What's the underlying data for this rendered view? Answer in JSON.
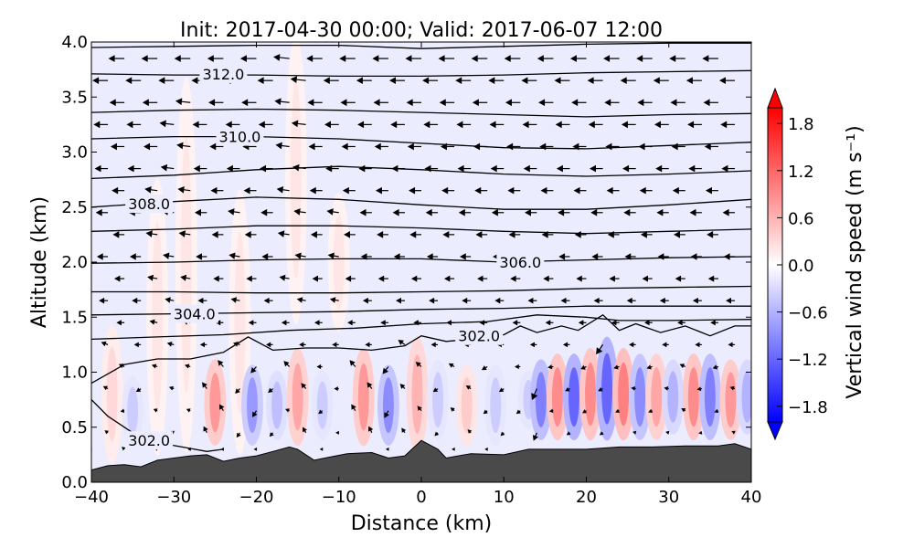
{
  "chart_data": {
    "type": "heatmap",
    "title": "Init: 2017-04-30 00:00; Valid: 2017-06-07 12:00",
    "xlabel": "Distance (km)",
    "ylabel": "Altitude (km)",
    "xlim": [
      -40,
      40
    ],
    "ylim": [
      0.0,
      4.0
    ],
    "x_ticks": [
      -40,
      -30,
      -20,
      -10,
      0,
      10,
      20,
      30,
      40
    ],
    "x_tick_labels": [
      "−40",
      "−30",
      "−20",
      "−10",
      "0",
      "10",
      "20",
      "30",
      "40"
    ],
    "y_ticks": [
      0.0,
      0.5,
      1.0,
      1.5,
      2.0,
      2.5,
      3.0,
      3.5,
      4.0
    ],
    "y_tick_labels": [
      "0.0",
      "0.5",
      "1.0",
      "1.5",
      "2.0",
      "2.5",
      "3.0",
      "3.5",
      "4.0"
    ],
    "colorbar": {
      "label": "Vertical wind speed (m s⁻¹)",
      "range": [
        -2.0,
        2.0
      ],
      "ticks": [
        1.8,
        1.2,
        0.6,
        0.0,
        -0.6,
        -1.2,
        -1.8
      ],
      "tick_labels": [
        "1.8",
        "1.2",
        "0.6",
        "0.0",
        "−0.6",
        "−1.2",
        "−1.8"
      ],
      "colormap": "bwr",
      "extend": "both"
    },
    "grid": false,
    "colors": {
      "terrain": "#4a4a4a",
      "max": "#ff0000",
      "min": "#0000ff",
      "mid": "#ffffff"
    },
    "terrain_height_km": [
      [
        -40,
        0.11
      ],
      [
        -38,
        0.15
      ],
      [
        -36,
        0.16
      ],
      [
        -34,
        0.14
      ],
      [
        -32,
        0.2
      ],
      [
        -30,
        0.22
      ],
      [
        -28,
        0.24
      ],
      [
        -26,
        0.25
      ],
      [
        -24,
        0.19
      ],
      [
        -22,
        0.22
      ],
      [
        -20,
        0.24
      ],
      [
        -18,
        0.28
      ],
      [
        -16,
        0.32
      ],
      [
        -15,
        0.3
      ],
      [
        -13,
        0.2
      ],
      [
        -11,
        0.23
      ],
      [
        -9,
        0.26
      ],
      [
        -6,
        0.27
      ],
      [
        -4,
        0.22
      ],
      [
        -2,
        0.24
      ],
      [
        0,
        0.38
      ],
      [
        2,
        0.3
      ],
      [
        3,
        0.22
      ],
      [
        6,
        0.26
      ],
      [
        10,
        0.25
      ],
      [
        13,
        0.3
      ],
      [
        16,
        0.3
      ],
      [
        20,
        0.3
      ],
      [
        24,
        0.32
      ],
      [
        28,
        0.32
      ],
      [
        32,
        0.33
      ],
      [
        36,
        0.33
      ],
      [
        38,
        0.35
      ],
      [
        40,
        0.3
      ]
    ],
    "theta_contours": [
      {
        "level": "302.0",
        "label_at": [
          -33,
          0.38
        ],
        "points": [
          [
            -40,
            0.75
          ],
          [
            -38,
            0.6
          ],
          [
            -35,
            0.45
          ],
          [
            -32,
            0.36
          ],
          [
            -29,
            0.32
          ],
          [
            -26,
            0.28
          ],
          [
            -24,
            0.3
          ]
        ]
      },
      {
        "level": "302.0",
        "label_at": [
          7,
          1.33
        ],
        "points": [
          [
            -40,
            0.9
          ],
          [
            -36,
            1.07
          ],
          [
            -32,
            1.12
          ],
          [
            -28,
            1.12
          ],
          [
            -24,
            1.18
          ],
          [
            -21,
            1.32
          ],
          [
            -18,
            1.2
          ],
          [
            -14,
            1.22
          ],
          [
            -10,
            1.22
          ],
          [
            -6,
            1.2
          ],
          [
            -2,
            1.24
          ],
          [
            0,
            1.33
          ],
          [
            3,
            1.28
          ],
          [
            6,
            1.3
          ],
          [
            10,
            1.34
          ],
          [
            12,
            1.42
          ],
          [
            14,
            1.36
          ],
          [
            17,
            1.42
          ],
          [
            19,
            1.38
          ],
          [
            22,
            1.52
          ],
          [
            24,
            1.38
          ],
          [
            26,
            1.44
          ],
          [
            29,
            1.36
          ],
          [
            32,
            1.42
          ],
          [
            35,
            1.33
          ],
          [
            38,
            1.42
          ],
          [
            40,
            1.42
          ]
        ]
      },
      {
        "level": "",
        "points": [
          [
            -40,
            1.3
          ],
          [
            -32,
            1.32
          ],
          [
            -24,
            1.34
          ],
          [
            -16,
            1.38
          ],
          [
            -8,
            1.4
          ],
          [
            0,
            1.44
          ],
          [
            8,
            1.46
          ],
          [
            14,
            1.52
          ],
          [
            20,
            1.5
          ],
          [
            24,
            1.47
          ],
          [
            30,
            1.47
          ],
          [
            40,
            1.48
          ]
        ]
      },
      {
        "level": "304.0",
        "label_at": [
          -27.5,
          1.53
        ],
        "points": [
          [
            -40,
            1.52
          ],
          [
            -30,
            1.53
          ],
          [
            -20,
            1.54
          ],
          [
            -10,
            1.55
          ],
          [
            0,
            1.57
          ],
          [
            10,
            1.58
          ],
          [
            20,
            1.6
          ],
          [
            30,
            1.6
          ],
          [
            40,
            1.6
          ]
        ]
      },
      {
        "level": "",
        "points": [
          [
            -40,
            1.73
          ],
          [
            -30,
            1.73
          ],
          [
            -20,
            1.72
          ],
          [
            -10,
            1.72
          ],
          [
            0,
            1.73
          ],
          [
            10,
            1.74
          ],
          [
            20,
            1.76
          ],
          [
            30,
            1.77
          ],
          [
            40,
            1.78
          ]
        ]
      },
      {
        "level": "306.0",
        "label_at": [
          12,
          2.0
        ],
        "points": [
          [
            -40,
            1.99
          ],
          [
            -30,
            2.0
          ],
          [
            -20,
            2.02
          ],
          [
            -10,
            2.03
          ],
          [
            0,
            2.03
          ],
          [
            10,
            2.0
          ],
          [
            20,
            2.02
          ],
          [
            30,
            2.04
          ],
          [
            40,
            2.05
          ]
        ]
      },
      {
        "level": "",
        "points": [
          [
            -40,
            2.28
          ],
          [
            -30,
            2.3
          ],
          [
            -20,
            2.33
          ],
          [
            -10,
            2.33
          ],
          [
            0,
            2.31
          ],
          [
            10,
            2.28
          ],
          [
            20,
            2.26
          ],
          [
            30,
            2.28
          ],
          [
            40,
            2.3
          ]
        ]
      },
      {
        "level": "308.0",
        "label_at": [
          -33,
          2.53
        ],
        "points": [
          [
            -40,
            2.5
          ],
          [
            -30,
            2.55
          ],
          [
            -20,
            2.59
          ],
          [
            -10,
            2.57
          ],
          [
            0,
            2.52
          ],
          [
            10,
            2.48
          ],
          [
            20,
            2.48
          ],
          [
            30,
            2.52
          ],
          [
            40,
            2.57
          ]
        ]
      },
      {
        "level": "",
        "points": [
          [
            -40,
            2.76
          ],
          [
            -30,
            2.79
          ],
          [
            -20,
            2.84
          ],
          [
            -10,
            2.87
          ],
          [
            0,
            2.84
          ],
          [
            10,
            2.8
          ],
          [
            20,
            2.78
          ],
          [
            30,
            2.8
          ],
          [
            40,
            2.83
          ]
        ]
      },
      {
        "level": "310.0",
        "label_at": [
          -22,
          3.14
        ],
        "points": [
          [
            -40,
            3.12
          ],
          [
            -30,
            3.14
          ],
          [
            -20,
            3.14
          ],
          [
            -10,
            3.12
          ],
          [
            0,
            3.08
          ],
          [
            10,
            3.04
          ],
          [
            20,
            3.03
          ],
          [
            30,
            3.06
          ],
          [
            40,
            3.09
          ]
        ]
      },
      {
        "level": "",
        "points": [
          [
            -40,
            3.36
          ],
          [
            -30,
            3.38
          ],
          [
            -20,
            3.39
          ],
          [
            -10,
            3.38
          ],
          [
            0,
            3.36
          ],
          [
            10,
            3.34
          ],
          [
            20,
            3.32
          ],
          [
            30,
            3.34
          ],
          [
            40,
            3.35
          ]
        ]
      },
      {
        "level": "312.0",
        "label_at": [
          -24,
          3.71
        ],
        "points": [
          [
            -40,
            3.71
          ],
          [
            -30,
            3.7
          ],
          [
            -20,
            3.7
          ],
          [
            -10,
            3.69
          ],
          [
            0,
            3.69
          ],
          [
            10,
            3.7
          ],
          [
            20,
            3.72
          ],
          [
            30,
            3.73
          ],
          [
            40,
            3.74
          ]
        ]
      },
      {
        "level": "",
        "points": [
          [
            -40,
            3.95
          ],
          [
            -30,
            3.96
          ],
          [
            -20,
            3.97
          ],
          [
            -10,
            3.97
          ],
          [
            0,
            3.94
          ],
          [
            10,
            3.96
          ],
          [
            20,
            3.98
          ],
          [
            30,
            3.99
          ],
          [
            40,
            3.99
          ]
        ]
      }
    ],
    "updraft_cells": [
      {
        "x": -37.5,
        "z0": 0.2,
        "z1": 1.4,
        "w": 0.3
      },
      {
        "x": -35,
        "z0": 0.35,
        "z1": 0.95,
        "w": -0.4
      },
      {
        "x": -32,
        "z0": 0.3,
        "z1": 2.7,
        "w": 0.2
      },
      {
        "x": -28.5,
        "z0": 0.35,
        "z1": 3.6,
        "w": 0.2
      },
      {
        "x": -25,
        "z0": 0.35,
        "z1": 1.1,
        "w": 0.8
      },
      {
        "x": -22,
        "z0": 0.3,
        "z1": 2.6,
        "w": 0.2
      },
      {
        "x": -20.5,
        "z0": 0.35,
        "z1": 1.05,
        "w": -0.8
      },
      {
        "x": -17.5,
        "z0": 0.4,
        "z1": 1.0,
        "w": -0.5
      },
      {
        "x": -15,
        "z0": 0.35,
        "z1": 1.2,
        "w": 0.7
      },
      {
        "x": -15.2,
        "z0": 1.5,
        "z1": 4.0,
        "w": 0.2
      },
      {
        "x": -12,
        "z0": 0.4,
        "z1": 1.0,
        "w": -0.4
      },
      {
        "x": -10,
        "z0": 1.4,
        "z1": 2.6,
        "w": 0.2
      },
      {
        "x": -7,
        "z0": 0.35,
        "z1": 1.2,
        "w": 0.8
      },
      {
        "x": -4,
        "z0": 0.35,
        "z1": 1.05,
        "w": -0.9
      },
      {
        "x": -0.5,
        "z0": 0.3,
        "z1": 1.3,
        "w": 0.6
      },
      {
        "x": 2,
        "z0": 0.4,
        "z1": 1.1,
        "w": -0.4
      },
      {
        "x": 5.5,
        "z0": 0.35,
        "z1": 1.05,
        "w": 0.4
      },
      {
        "x": 9,
        "z0": 0.35,
        "z1": 1.05,
        "w": -0.4
      },
      {
        "x": 13,
        "z0": 0.5,
        "z1": 1.0,
        "w": -0.4
      },
      {
        "x": 14.5,
        "z0": 0.4,
        "z1": 1.1,
        "w": -1.0
      },
      {
        "x": 16.5,
        "z0": 0.4,
        "z1": 1.15,
        "w": 0.9
      },
      {
        "x": 18.5,
        "z0": 0.4,
        "z1": 1.15,
        "w": -1.2
      },
      {
        "x": 20.5,
        "z0": 0.4,
        "z1": 1.2,
        "w": 0.9
      },
      {
        "x": 22.5,
        "z0": 0.4,
        "z1": 1.3,
        "w": -1.2
      },
      {
        "x": 24.5,
        "z0": 0.4,
        "z1": 1.2,
        "w": 1.0
      },
      {
        "x": 26.5,
        "z0": 0.4,
        "z1": 1.15,
        "w": -0.9
      },
      {
        "x": 28.5,
        "z0": 0.4,
        "z1": 1.15,
        "w": 0.7
      },
      {
        "x": 30.5,
        "z0": 0.45,
        "z1": 1.1,
        "w": -0.6
      },
      {
        "x": 33,
        "z0": 0.4,
        "z1": 1.15,
        "w": 0.9
      },
      {
        "x": 35,
        "z0": 0.4,
        "z1": 1.15,
        "w": -1.0
      },
      {
        "x": 37.5,
        "z0": 0.4,
        "z1": 1.1,
        "w": 0.8
      },
      {
        "x": 39.5,
        "z0": 0.45,
        "z1": 1.1,
        "w": -0.6
      }
    ],
    "wind_vectors": {
      "x_positions": [
        -40,
        -36,
        -32,
        -28,
        -24,
        -20,
        -16,
        -12,
        -8,
        -4,
        0,
        4,
        8,
        12,
        16,
        20,
        24,
        28,
        32,
        36,
        40
      ],
      "z_positions": [
        0.3,
        0.45,
        0.65,
        0.85,
        1.05,
        1.25,
        1.45,
        1.65,
        1.85,
        2.05,
        2.25,
        2.45,
        2.65,
        2.85,
        3.05,
        3.25,
        3.45,
        3.65,
        3.85
      ],
      "note_u_profile_ms": [
        [
          0.3,
          -1
        ],
        [
          1.0,
          -2
        ],
        [
          2.0,
          -4
        ],
        [
          3.0,
          -5
        ],
        [
          4.0,
          -6
        ]
      ]
    }
  }
}
